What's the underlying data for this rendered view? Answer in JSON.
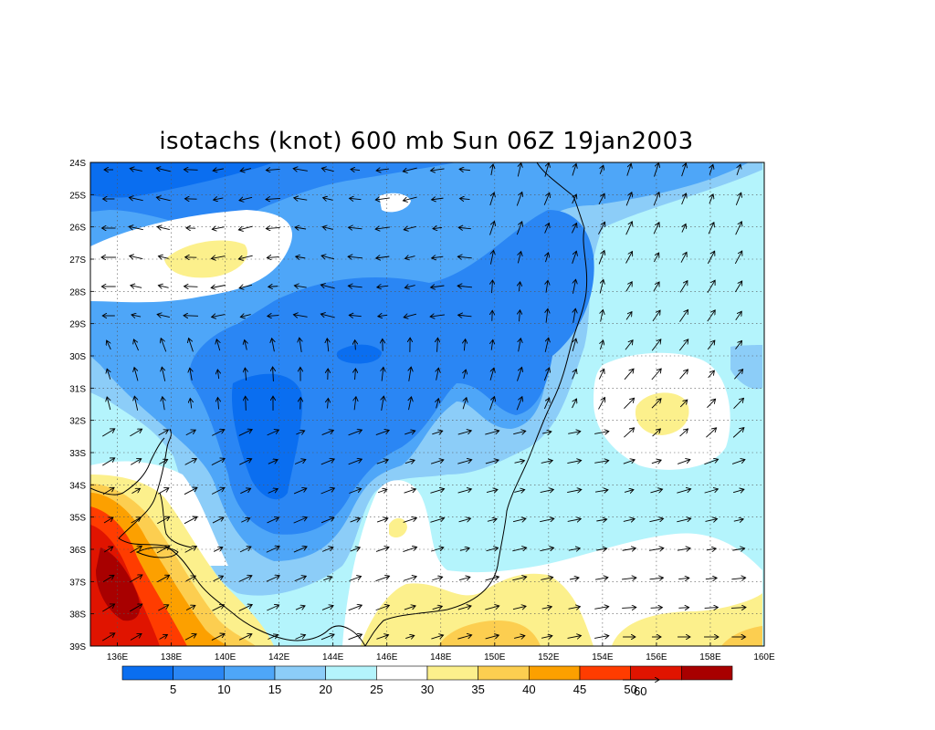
{
  "title": "isotachs (knot) 600 mb Sun 06Z 19jan2003",
  "map": {
    "lat_range": [
      -39,
      -24
    ],
    "lon_range": [
      135,
      160
    ],
    "lat_ticks": [
      "24S",
      "25S",
      "26S",
      "27S",
      "28S",
      "29S",
      "30S",
      "31S",
      "32S",
      "33S",
      "34S",
      "35S",
      "36S",
      "37S",
      "38S",
      "39S"
    ],
    "lon_ticks": [
      "136E",
      "138E",
      "140E",
      "142E",
      "144E",
      "146E",
      "148E",
      "150E",
      "152E",
      "154E",
      "156E",
      "158E",
      "160E"
    ],
    "grid": "dotted"
  },
  "colorbar": {
    "colors": [
      "#0a6ef0",
      "#2a86f4",
      "#4ea6f8",
      "#8ccdf8",
      "#b4f4fc",
      "#ffffff",
      "#fcf08c",
      "#fcce50",
      "#fca000",
      "#ff3c00",
      "#e01400",
      "#a80000"
    ],
    "labels": [
      "5",
      "10",
      "15",
      "20",
      "25",
      "30",
      "35",
      "40",
      "45",
      "50"
    ]
  },
  "vector_reference": {
    "label": "60"
  }
}
